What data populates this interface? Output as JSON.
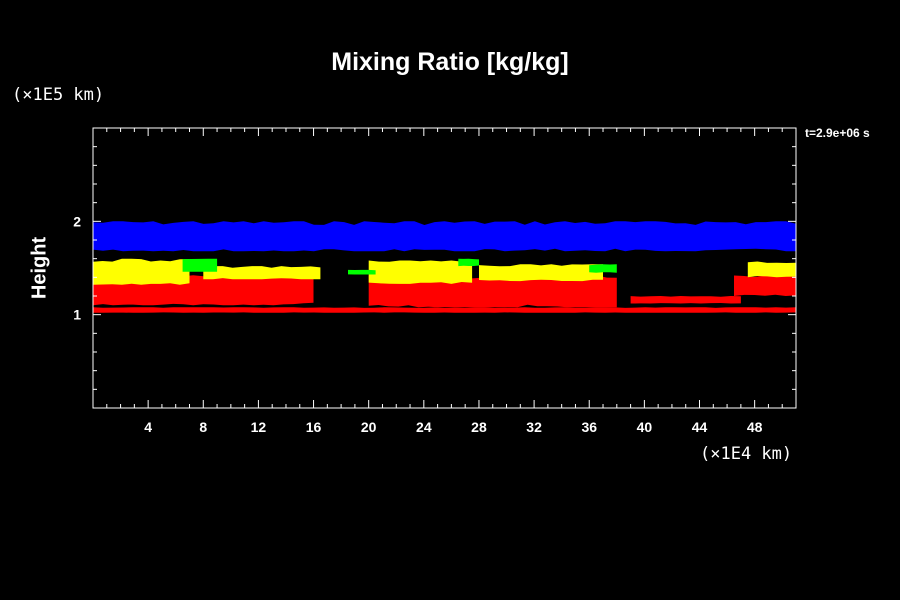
{
  "title": "Mixing Ratio [kg/kg]",
  "time_label": "t=2.9e+06 s",
  "chart_data": {
    "type": "heatmap",
    "title": "Mixing Ratio [kg/kg]",
    "ylabel": "Height",
    "y_unit": "(×1E5 km)",
    "x_unit": "(×1E4 km)",
    "xlim": [
      0,
      51
    ],
    "ylim": [
      0,
      3
    ],
    "x_ticks": [
      4,
      8,
      12,
      16,
      20,
      24,
      28,
      32,
      36,
      40,
      44,
      48
    ],
    "y_ticks": [
      1,
      2
    ],
    "background": "#000000",
    "colors": {
      "blue": "#0000ff",
      "yellow": "#ffff00",
      "red": "#ff0000",
      "green": "#00ff00"
    },
    "layers": [
      {
        "color": "blue",
        "bands": [
          {
            "x": [
              0,
              51
            ],
            "y": [
              1.68,
              2.0
            ]
          }
        ]
      },
      {
        "color": "red",
        "bands": [
          {
            "x": [
              0,
              51
            ],
            "y": [
              1.02,
              1.08
            ]
          },
          {
            "x": [
              0,
              16
            ],
            "y": [
              1.1,
              1.45
            ]
          },
          {
            "x": [
              20,
              38
            ],
            "y": [
              1.08,
              1.42
            ]
          },
          {
            "x": [
              39,
              47
            ],
            "y": [
              1.12,
              1.2
            ]
          },
          {
            "x": [
              46.5,
              51
            ],
            "y": [
              1.2,
              1.42
            ]
          }
        ]
      },
      {
        "color": "yellow",
        "bands": [
          {
            "x": [
              0,
              7
            ],
            "y": [
              1.32,
              1.6
            ]
          },
          {
            "x": [
              8,
              16.5
            ],
            "y": [
              1.38,
              1.52
            ]
          },
          {
            "x": [
              20,
              27.5
            ],
            "y": [
              1.33,
              1.58
            ]
          },
          {
            "x": [
              28,
              37
            ],
            "y": [
              1.36,
              1.54
            ]
          },
          {
            "x": [
              47.5,
              51
            ],
            "y": [
              1.4,
              1.57
            ]
          }
        ]
      },
      {
        "color": "green",
        "bands": [
          {
            "x": [
              6.5,
              9
            ],
            "y": [
              1.46,
              1.6
            ]
          },
          {
            "x": [
              18.5,
              20.5
            ],
            "y": [
              1.43,
              1.48
            ]
          },
          {
            "x": [
              26.5,
              28
            ],
            "y": [
              1.52,
              1.6
            ]
          },
          {
            "x": [
              36,
              38
            ],
            "y": [
              1.45,
              1.54
            ]
          }
        ]
      }
    ]
  }
}
